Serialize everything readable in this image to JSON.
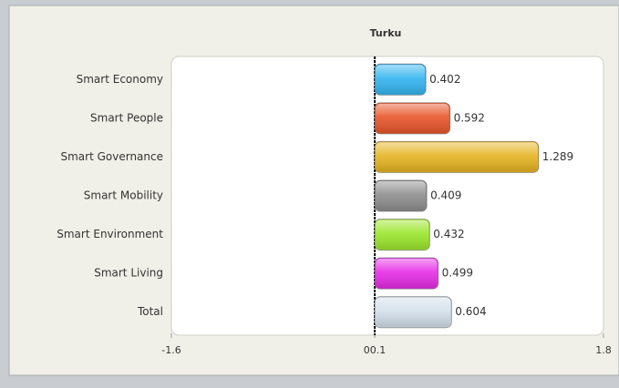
{
  "chart_data": {
    "type": "hbar",
    "title": "Turku",
    "categories": [
      "Smart Economy",
      "Smart People",
      "Smart Governance",
      "Smart Mobility",
      "Smart Environment",
      "Smart Living",
      "Total"
    ],
    "values": [
      0.402,
      0.592,
      1.289,
      0.409,
      0.432,
      0.499,
      0.604
    ],
    "colors": [
      "#33b5f0",
      "#e8562a",
      "#e6b422",
      "#8e8e8e",
      "#9be62c",
      "#e62ce6",
      "#d3dfea"
    ],
    "xlim": [
      -1.6,
      1.8
    ],
    "xticks": [
      -1.6,
      {
        "value": 0,
        "label": "00.1"
      },
      1.8
    ]
  }
}
